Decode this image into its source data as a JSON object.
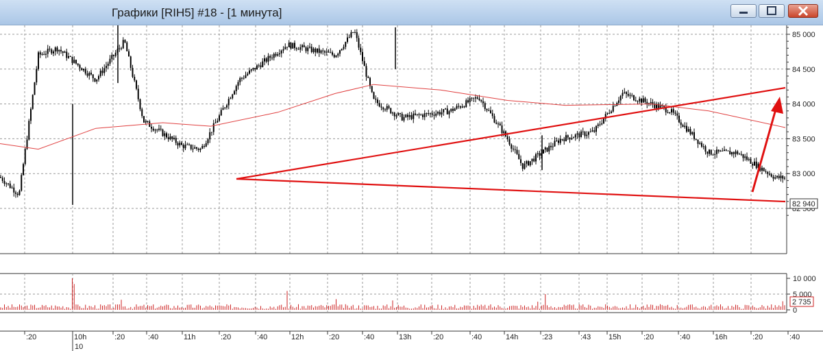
{
  "window": {
    "title": "Графики [RIH5] #18 - [1 минута]",
    "buttons": [
      "minimize",
      "maximize",
      "close"
    ]
  },
  "price_axis": {
    "ticks": [
      "85 000",
      "84 500",
      "84 000",
      "83 500",
      "83 000",
      "82 500"
    ],
    "tick_values": [
      85000,
      84500,
      84000,
      83500,
      83000,
      82500
    ],
    "current_price": "82 940"
  },
  "volume_axis": {
    "ticks": [
      "10 000",
      "5 000",
      "0"
    ],
    "current_volume": "2 735"
  },
  "time_axis": {
    "ticks": [
      ":20",
      "10h",
      ":20",
      ":40",
      "11h",
      ":20",
      ":40",
      "12h",
      ":20",
      ":40",
      "13h",
      ":20",
      ":40",
      "14h",
      ":23",
      ":43",
      "15h",
      ":20",
      ":40",
      "16h",
      ":20",
      ":40"
    ],
    "date_label": "10"
  },
  "colors": {
    "candles": "#000000",
    "moving_average": "#e04040",
    "trendlines": "#e01010",
    "volume": "#cc2222",
    "grid": "#9a9a9a"
  },
  "chart_data": [
    {
      "type": "candlestick",
      "title": "",
      "xlabel": "",
      "ylabel": "",
      "ylim": [
        82300,
        85300
      ],
      "interval": "1 минута",
      "current_value": 82940,
      "key_closes": [
        {
          "t": "09:50",
          "v": 82950
        },
        {
          "t": "10:00",
          "v": 82700
        },
        {
          "t": "10:10",
          "v": 84700
        },
        {
          "t": "10:20",
          "v": 84800
        },
        {
          "t": "10:40",
          "v": 84350
        },
        {
          "t": "10:55",
          "v": 84900
        },
        {
          "t": "11:05",
          "v": 83750
        },
        {
          "t": "11:25",
          "v": 83400
        },
        {
          "t": "11:35",
          "v": 83350
        },
        {
          "t": "11:55",
          "v": 84350
        },
        {
          "t": "12:20",
          "v": 84850
        },
        {
          "t": "12:45",
          "v": 84700
        },
        {
          "t": "12:55",
          "v": 85050
        },
        {
          "t": "13:05",
          "v": 84050
        },
        {
          "t": "13:20",
          "v": 83800
        },
        {
          "t": "13:45",
          "v": 83900
        },
        {
          "t": "14:00",
          "v": 84100
        },
        {
          "t": "14:15",
          "v": 83500
        },
        {
          "t": "14:23",
          "v": 83100
        },
        {
          "t": "14:43",
          "v": 83500
        },
        {
          "t": "15:00",
          "v": 83600
        },
        {
          "t": "15:15",
          "v": 84150
        },
        {
          "t": "15:40",
          "v": 83900
        },
        {
          "t": "16:00",
          "v": 83300
        },
        {
          "t": "16:15",
          "v": 83300
        },
        {
          "t": "16:35",
          "v": 82940
        }
      ],
      "moving_average": [
        {
          "t": "09:50",
          "v": 83430
        },
        {
          "t": "10:10",
          "v": 83350
        },
        {
          "t": "10:40",
          "v": 83650
        },
        {
          "t": "11:15",
          "v": 83730
        },
        {
          "t": "11:40",
          "v": 83680
        },
        {
          "t": "12:15",
          "v": 83880
        },
        {
          "t": "12:45",
          "v": 84150
        },
        {
          "t": "13:05",
          "v": 84280
        },
        {
          "t": "13:40",
          "v": 84200
        },
        {
          "t": "14:15",
          "v": 84050
        },
        {
          "t": "14:45",
          "v": 83980
        },
        {
          "t": "15:30",
          "v": 84000
        },
        {
          "t": "16:00",
          "v": 83900
        },
        {
          "t": "16:40",
          "v": 83660
        }
      ]
    },
    {
      "type": "bar",
      "title": "",
      "series": [
        {
          "name": "",
          "values": [
            10000,
            5000,
            2735
          ]
        }
      ],
      "ylim": [
        0,
        10000
      ],
      "current_value": 2735
    }
  ]
}
